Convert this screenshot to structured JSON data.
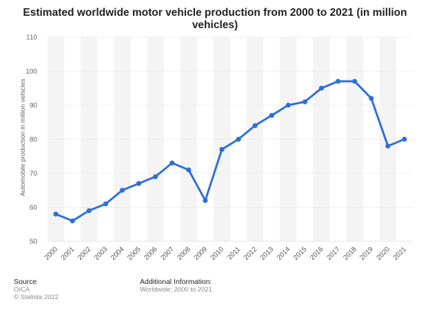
{
  "chart_data": {
    "type": "line",
    "title": "Estimated worldwide motor vehicle production from 2000 to 2021 (in million vehicles)",
    "xlabel": "",
    "ylabel": "Automobile production in million vehicles",
    "categories": [
      "2000",
      "2001",
      "2002",
      "2003",
      "2004",
      "2005",
      "2006",
      "2007",
      "2008",
      "2009",
      "2010",
      "2011",
      "2012",
      "2013",
      "2014",
      "2015",
      "2016",
      "2017",
      "2018",
      "2019",
      "2020",
      "2021"
    ],
    "values": [
      58,
      56,
      59,
      61,
      65,
      67,
      69,
      73,
      71,
      62,
      77,
      80,
      84,
      87,
      90,
      91,
      95,
      97,
      97,
      92,
      78,
      80
    ],
    "ylim": [
      50,
      110
    ],
    "yticks": [
      "50",
      "60",
      "70",
      "80",
      "90",
      "100",
      "110"
    ],
    "grid": true,
    "alternating_band_color": "#f4f4f4",
    "line_color": "#2f6fd8"
  },
  "footer": {
    "source_label": "Source",
    "source_name": "OICA",
    "copyright": "© Statista 2022",
    "info_label": "Additional Information:",
    "info_text": "Worldwide; 2000 to 2021"
  }
}
